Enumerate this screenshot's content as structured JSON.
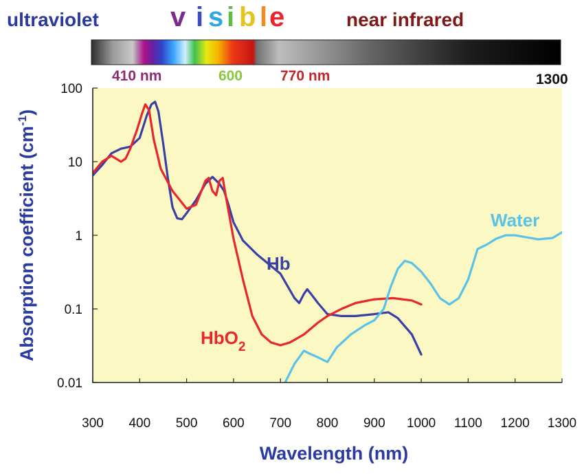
{
  "chart_data": {
    "type": "line",
    "y_scale": "log",
    "xlabel": "Wavelength (nm)",
    "ylabel": "Absorption coefficient (cm",
    "ylabel_sup": "-1",
    "ylabel_close": ")",
    "xlim": [
      300,
      1300
    ],
    "ylim": [
      0.01,
      100
    ],
    "x_ticks": [
      300,
      400,
      500,
      600,
      700,
      800,
      900,
      1000,
      1100,
      1200,
      1300
    ],
    "y_ticks": [
      {
        "value": 100,
        "label": "100"
      },
      {
        "value": 10,
        "label": "10"
      },
      {
        "value": 1,
        "label": "1"
      },
      {
        "value": 0.1,
        "label": "0.1"
      },
      {
        "value": 0.01,
        "label": "0.01"
      }
    ],
    "spectrum": {
      "regions": {
        "uv": "ultraviolet",
        "visible_letters": [
          "v",
          "i",
          "s",
          "i",
          "b",
          "l",
          "e"
        ],
        "nir": "near infrared"
      },
      "markers": {
        "m410": "410 nm",
        "m600": "600",
        "m770": "770 nm",
        "m1300": "1300"
      },
      "bar_range_nm": [
        300,
        1300
      ],
      "visible_band_nm": [
        410,
        770
      ]
    },
    "series": [
      {
        "name": "Hb",
        "label": "Hb",
        "color": "#3a3fa6",
        "points": [
          [
            300,
            6.5
          ],
          [
            320,
            9
          ],
          [
            340,
            13
          ],
          [
            360,
            15
          ],
          [
            380,
            16
          ],
          [
            400,
            21
          ],
          [
            415,
            42
          ],
          [
            425,
            60
          ],
          [
            433,
            65
          ],
          [
            440,
            48
          ],
          [
            450,
            18
          ],
          [
            460,
            6
          ],
          [
            470,
            2.4
          ],
          [
            480,
            1.7
          ],
          [
            490,
            1.65
          ],
          [
            500,
            2
          ],
          [
            520,
            3
          ],
          [
            540,
            5
          ],
          [
            555,
            6.2
          ],
          [
            570,
            5
          ],
          [
            580,
            4
          ],
          [
            590,
            2.5
          ],
          [
            600,
            1.5
          ],
          [
            620,
            0.85
          ],
          [
            650,
            0.55
          ],
          [
            700,
            0.3
          ],
          [
            730,
            0.14
          ],
          [
            740,
            0.12
          ],
          [
            750,
            0.16
          ],
          [
            757,
            0.185
          ],
          [
            765,
            0.16
          ],
          [
            780,
            0.12
          ],
          [
            800,
            0.085
          ],
          [
            830,
            0.08
          ],
          [
            860,
            0.08
          ],
          [
            900,
            0.085
          ],
          [
            930,
            0.09
          ],
          [
            950,
            0.075
          ],
          [
            980,
            0.045
          ],
          [
            1000,
            0.024
          ]
        ]
      },
      {
        "name": "HbO2",
        "label": "HbO",
        "label_sub": "2",
        "color": "#e8262c",
        "points": [
          [
            300,
            7
          ],
          [
            320,
            10
          ],
          [
            340,
            12
          ],
          [
            360,
            10
          ],
          [
            370,
            11
          ],
          [
            380,
            15
          ],
          [
            395,
            28
          ],
          [
            405,
            45
          ],
          [
            412,
            60
          ],
          [
            420,
            50
          ],
          [
            430,
            20
          ],
          [
            445,
            8
          ],
          [
            470,
            4
          ],
          [
            500,
            2.3
          ],
          [
            520,
            2.6
          ],
          [
            540,
            5.5
          ],
          [
            547,
            6
          ],
          [
            555,
            4
          ],
          [
            563,
            3.5
          ],
          [
            570,
            5.5
          ],
          [
            577,
            6
          ],
          [
            585,
            3
          ],
          [
            600,
            0.9
          ],
          [
            620,
            0.25
          ],
          [
            640,
            0.08
          ],
          [
            660,
            0.045
          ],
          [
            680,
            0.035
          ],
          [
            700,
            0.032
          ],
          [
            720,
            0.035
          ],
          [
            750,
            0.045
          ],
          [
            780,
            0.065
          ],
          [
            800,
            0.08
          ],
          [
            830,
            0.1
          ],
          [
            860,
            0.12
          ],
          [
            900,
            0.135
          ],
          [
            940,
            0.14
          ],
          [
            980,
            0.13
          ],
          [
            1000,
            0.115
          ]
        ]
      },
      {
        "name": "Water",
        "label": "Water",
        "color": "#5bc2e7",
        "points": [
          [
            710,
            0.01
          ],
          [
            730,
            0.018
          ],
          [
            750,
            0.027
          ],
          [
            760,
            0.025
          ],
          [
            780,
            0.022
          ],
          [
            800,
            0.019
          ],
          [
            820,
            0.03
          ],
          [
            850,
            0.045
          ],
          [
            880,
            0.06
          ],
          [
            900,
            0.07
          ],
          [
            920,
            0.1
          ],
          [
            935,
            0.2
          ],
          [
            950,
            0.35
          ],
          [
            965,
            0.45
          ],
          [
            980,
            0.42
          ],
          [
            1000,
            0.32
          ],
          [
            1020,
            0.22
          ],
          [
            1040,
            0.14
          ],
          [
            1060,
            0.115
          ],
          [
            1080,
            0.14
          ],
          [
            1100,
            0.25
          ],
          [
            1120,
            0.65
          ],
          [
            1140,
            0.75
          ],
          [
            1160,
            0.9
          ],
          [
            1180,
            1.0
          ],
          [
            1200,
            1.0
          ],
          [
            1220,
            0.95
          ],
          [
            1250,
            0.88
          ],
          [
            1280,
            0.92
          ],
          [
            1300,
            1.1
          ]
        ]
      }
    ]
  }
}
